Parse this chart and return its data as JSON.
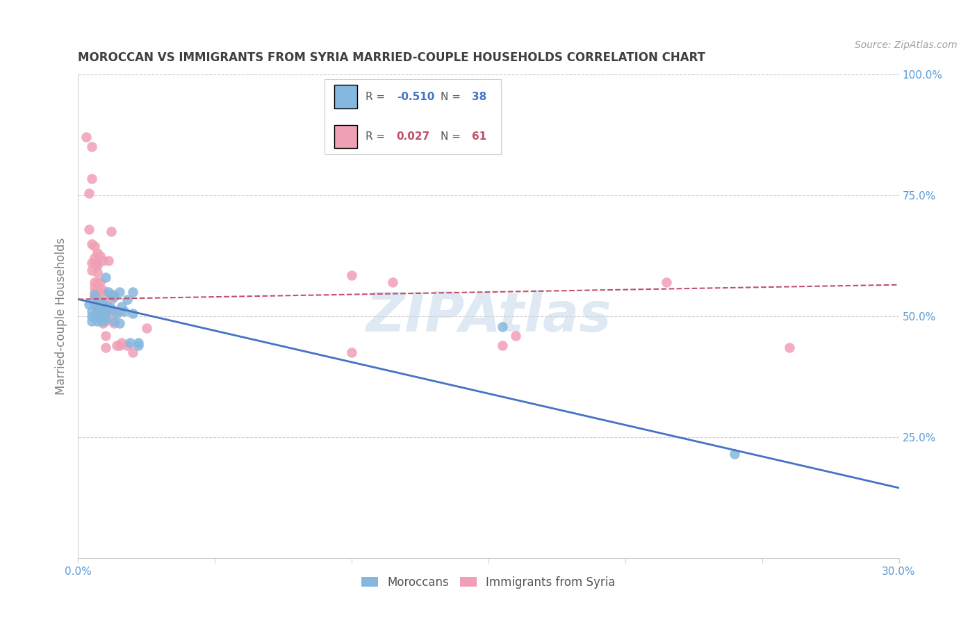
{
  "title": "MOROCCAN VS IMMIGRANTS FROM SYRIA MARRIED-COUPLE HOUSEHOLDS CORRELATION CHART",
  "source": "Source: ZipAtlas.com",
  "ylabel": "Married-couple Households",
  "xlim": [
    0.0,
    0.3
  ],
  "ylim": [
    0.0,
    1.0
  ],
  "yticks": [
    0.0,
    0.25,
    0.5,
    0.75,
    1.0
  ],
  "ytick_labels": [
    "",
    "25.0%",
    "50.0%",
    "75.0%",
    "100.0%"
  ],
  "xticks": [
    0.0,
    0.05,
    0.1,
    0.15,
    0.2,
    0.25,
    0.3
  ],
  "xtick_labels": [
    "0.0%",
    "",
    "",
    "",
    "",
    "",
    "30.0%"
  ],
  "blue_color": "#85b8de",
  "pink_color": "#f0a0b5",
  "blue_line_color": "#4472c4",
  "pink_line_color": "#c0506a",
  "legend_R_blue": "-0.510",
  "legend_N_blue": "38",
  "legend_R_pink": "0.027",
  "legend_N_pink": "61",
  "legend_label_blue": "Moroccans",
  "legend_label_pink": "Immigrants from Syria",
  "background_color": "#ffffff",
  "blue_scatter": [
    [
      0.004,
      0.525
    ],
    [
      0.005,
      0.51
    ],
    [
      0.005,
      0.5
    ],
    [
      0.005,
      0.49
    ],
    [
      0.006,
      0.545
    ],
    [
      0.006,
      0.525
    ],
    [
      0.007,
      0.515
    ],
    [
      0.007,
      0.5
    ],
    [
      0.007,
      0.49
    ],
    [
      0.008,
      0.53
    ],
    [
      0.008,
      0.51
    ],
    [
      0.008,
      0.495
    ],
    [
      0.009,
      0.525
    ],
    [
      0.009,
      0.505
    ],
    [
      0.009,
      0.49
    ],
    [
      0.01,
      0.58
    ],
    [
      0.01,
      0.515
    ],
    [
      0.01,
      0.505
    ],
    [
      0.01,
      0.495
    ],
    [
      0.011,
      0.55
    ],
    [
      0.011,
      0.52
    ],
    [
      0.012,
      0.545
    ],
    [
      0.012,
      0.515
    ],
    [
      0.013,
      0.54
    ],
    [
      0.013,
      0.49
    ],
    [
      0.014,
      0.505
    ],
    [
      0.015,
      0.55
    ],
    [
      0.015,
      0.485
    ],
    [
      0.016,
      0.52
    ],
    [
      0.017,
      0.51
    ],
    [
      0.018,
      0.535
    ],
    [
      0.019,
      0.445
    ],
    [
      0.02,
      0.55
    ],
    [
      0.02,
      0.505
    ],
    [
      0.022,
      0.445
    ],
    [
      0.022,
      0.44
    ],
    [
      0.155,
      0.478
    ],
    [
      0.24,
      0.215
    ]
  ],
  "pink_scatter": [
    [
      0.003,
      0.87
    ],
    [
      0.004,
      0.68
    ],
    [
      0.004,
      0.755
    ],
    [
      0.005,
      0.85
    ],
    [
      0.005,
      0.785
    ],
    [
      0.005,
      0.65
    ],
    [
      0.005,
      0.61
    ],
    [
      0.005,
      0.595
    ],
    [
      0.006,
      0.645
    ],
    [
      0.006,
      0.62
    ],
    [
      0.006,
      0.61
    ],
    [
      0.006,
      0.57
    ],
    [
      0.006,
      0.56
    ],
    [
      0.006,
      0.55
    ],
    [
      0.006,
      0.54
    ],
    [
      0.007,
      0.63
    ],
    [
      0.007,
      0.61
    ],
    [
      0.007,
      0.605
    ],
    [
      0.007,
      0.59
    ],
    [
      0.007,
      0.57
    ],
    [
      0.007,
      0.55
    ],
    [
      0.007,
      0.515
    ],
    [
      0.007,
      0.505
    ],
    [
      0.008,
      0.625
    ],
    [
      0.008,
      0.57
    ],
    [
      0.008,
      0.55
    ],
    [
      0.008,
      0.525
    ],
    [
      0.008,
      0.515
    ],
    [
      0.008,
      0.51
    ],
    [
      0.009,
      0.615
    ],
    [
      0.009,
      0.555
    ],
    [
      0.009,
      0.525
    ],
    [
      0.009,
      0.51
    ],
    [
      0.009,
      0.485
    ],
    [
      0.01,
      0.545
    ],
    [
      0.01,
      0.525
    ],
    [
      0.01,
      0.505
    ],
    [
      0.01,
      0.49
    ],
    [
      0.01,
      0.46
    ],
    [
      0.01,
      0.435
    ],
    [
      0.011,
      0.615
    ],
    [
      0.011,
      0.505
    ],
    [
      0.012,
      0.675
    ],
    [
      0.012,
      0.535
    ],
    [
      0.012,
      0.51
    ],
    [
      0.013,
      0.545
    ],
    [
      0.013,
      0.485
    ],
    [
      0.014,
      0.44
    ],
    [
      0.015,
      0.51
    ],
    [
      0.015,
      0.44
    ],
    [
      0.016,
      0.445
    ],
    [
      0.018,
      0.44
    ],
    [
      0.02,
      0.425
    ],
    [
      0.025,
      0.475
    ],
    [
      0.1,
      0.585
    ],
    [
      0.1,
      0.425
    ],
    [
      0.115,
      0.57
    ],
    [
      0.155,
      0.44
    ],
    [
      0.16,
      0.46
    ],
    [
      0.215,
      0.57
    ],
    [
      0.26,
      0.435
    ]
  ],
  "blue_trend_x": [
    0.0,
    0.3
  ],
  "blue_trend_y": [
    0.535,
    0.145
  ],
  "pink_trend_x": [
    0.0,
    0.3
  ],
  "pink_trend_y": [
    0.535,
    0.565
  ],
  "watermark_text": "ZIPAtlas",
  "watermark_color": "#c5d8ec",
  "watermark_alpha": 0.55,
  "grid_color": "#d0d0d0",
  "tick_color": "#5b9bd5",
  "ylabel_color": "#808080",
  "title_color": "#404040",
  "source_color": "#a0a0a0",
  "legend_text_color": "#555555",
  "legend_border_color": "#cccccc"
}
